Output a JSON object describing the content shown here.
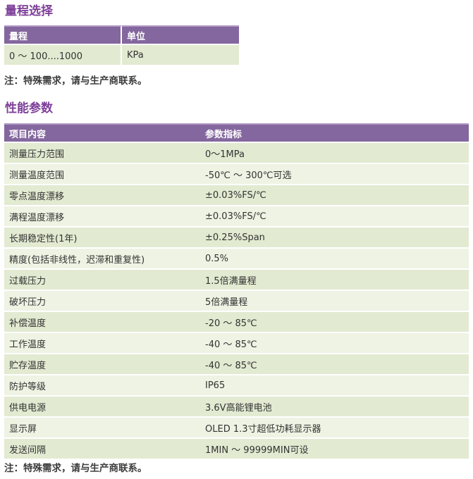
{
  "page": {
    "section_range": {
      "title": "量程选择",
      "table": {
        "headers": [
          "量程",
          "单位"
        ],
        "rows": [
          [
            "0 ～ 100....1000",
            "KPa"
          ]
        ]
      },
      "note": "注：特殊需求，请与生产商联系。"
    },
    "section_performance": {
      "title": "性能参数",
      "table": {
        "headers": [
          "项目内容",
          "参数指标"
        ],
        "rows": [
          [
            "测量压力范围",
            "0～1MPa"
          ],
          [
            "测量温度范围",
            "-50℃ ～ 300℃可选"
          ],
          [
            "零点温度漂移",
            "±0.03%FS/℃"
          ],
          [
            "满程温度漂移",
            "±0.03%FS/℃"
          ],
          [
            "长期稳定性(1年)",
            "±0.25%Span"
          ],
          [
            "精度(包括非线性，迟滞和重复性)",
            "0.5%"
          ],
          [
            "过载压力",
            "1.5倍满量程"
          ],
          [
            "破坏压力",
            "5倍满量程"
          ],
          [
            "补偿温度",
            "-20 ～ 85℃"
          ],
          [
            "工作温度",
            "-40 ～ 85℃"
          ],
          [
            "贮存温度",
            "-40 ～ 85℃"
          ],
          [
            "防护等级",
            "IP65"
          ],
          [
            "供电电源",
            "3.6V高能锂电池"
          ],
          [
            "显示屏",
            "OLED 1.3寸超低功耗显示器"
          ],
          [
            "发送间隔",
            "1MIN ～ 99999MIN可设"
          ]
        ]
      },
      "note": "注：特殊需求，请与生产商联系。"
    }
  },
  "colors": {
    "title_purple": "#7E4099",
    "header_purple": "#84679E",
    "header_top_highlight": "#AF99C5",
    "row_dark_green": "#E2EAD1",
    "row_light_green": "#EEF3E3",
    "note_text": "#3C3C3C"
  }
}
